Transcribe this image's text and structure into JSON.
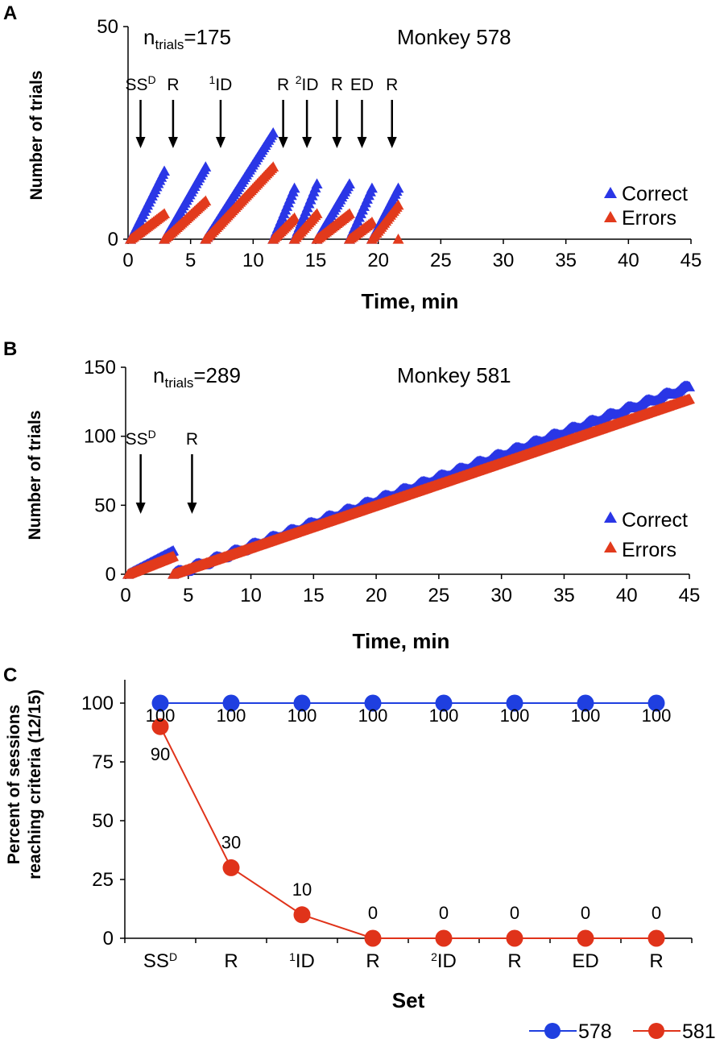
{
  "colors": {
    "correct": "#2a36e6",
    "errors": "#e23a1c",
    "s578": "#1f3fe0",
    "s581": "#e0331a"
  },
  "chart_data": [
    {
      "panel": "A",
      "type": "scatter",
      "title": "Monkey 578",
      "annotation": {
        "base": "n",
        "sub": "trials",
        "rest": "=175"
      },
      "xlabel": "Time, min",
      "ylabel": "Number of trials",
      "xlim": [
        0,
        45
      ],
      "ylim": [
        0,
        50
      ],
      "xticks": [
        "0",
        "5",
        "10",
        "15",
        "20",
        "25",
        "30",
        "35",
        "40",
        "45"
      ],
      "yticks": [
        "0",
        "50"
      ],
      "legend": [
        "Correct",
        "Errors"
      ],
      "legend_position": "right",
      "events": [
        {
          "t": 1.0,
          "label": "SS",
          "sup": "D"
        },
        {
          "t": 3.6,
          "label": "R"
        },
        {
          "t": 7.4,
          "pre": "1",
          "label": "ID"
        },
        {
          "t": 12.4,
          "label": "R"
        },
        {
          "t": 14.3,
          "pre": "2",
          "label": "ID"
        },
        {
          "t": 16.7,
          "label": "R"
        },
        {
          "t": 18.7,
          "label": "ED"
        },
        {
          "t": 21.1,
          "label": "R"
        }
      ],
      "segments": [
        {
          "t0": 0.2,
          "t1": 2.9,
          "correct_end": 16,
          "errors_end": 6
        },
        {
          "t0": 2.9,
          "t1": 6.2,
          "correct_end": 17,
          "errors_end": 9
        },
        {
          "t0": 6.2,
          "t1": 11.6,
          "correct_end": 25,
          "errors_end": 17
        },
        {
          "t0": 11.6,
          "t1": 13.3,
          "correct_end": 12,
          "errors_end": 5
        },
        {
          "t0": 13.3,
          "t1": 15.1,
          "correct_end": 13,
          "errors_end": 6
        },
        {
          "t0": 15.1,
          "t1": 17.7,
          "correct_end": 13,
          "errors_end": 6
        },
        {
          "t0": 17.7,
          "t1": 19.5,
          "correct_end": 12,
          "errors_end": 4
        },
        {
          "t0": 19.5,
          "t1": 21.6,
          "correct_end": 12,
          "errors_end": 8
        }
      ],
      "extra_errors": [
        {
          "t": 21.6,
          "v": 0
        }
      ]
    },
    {
      "panel": "B",
      "type": "scatter",
      "title": "Monkey 581",
      "annotation": {
        "base": "n",
        "sub": "trials",
        "rest": "=289"
      },
      "xlabel": "Time, min",
      "ylabel": "Number of trials",
      "xlim": [
        0,
        45
      ],
      "ylim": [
        0,
        150
      ],
      "xticks": [
        "0",
        "5",
        "10",
        "15",
        "20",
        "25",
        "30",
        "35",
        "40",
        "45"
      ],
      "yticks": [
        "0",
        "50",
        "100",
        "150"
      ],
      "legend": [
        "Correct",
        "Errors"
      ],
      "legend_position": "right",
      "events": [
        {
          "t": 1.2,
          "label": "SS",
          "sup": "D"
        },
        {
          "t": 5.3,
          "label": "R"
        }
      ],
      "segments": [
        {
          "t0": 0.2,
          "t1": 3.8,
          "correct_end": 17,
          "errors_end": 13
        },
        {
          "t0": 3.8,
          "t1": 45.0,
          "correct_end": 136,
          "errors_end": 127
        }
      ]
    },
    {
      "panel": "C",
      "type": "line",
      "xlabel": "Set",
      "ylabel_lines": [
        "Percent of sessions",
        "reaching criteria (12/15)"
      ],
      "ylim": [
        0,
        100
      ],
      "yticks": [
        "0",
        "25",
        "50",
        "75",
        "100"
      ],
      "categories": [
        {
          "label": "SS",
          "sup": "D"
        },
        {
          "label": "R"
        },
        {
          "pre": "1",
          "label": "ID"
        },
        {
          "label": "R"
        },
        {
          "pre": "2",
          "label": "ID"
        },
        {
          "label": "R"
        },
        {
          "label": "ED"
        },
        {
          "label": "R"
        }
      ],
      "series": [
        {
          "name": "578",
          "values": [
            100,
            100,
            100,
            100,
            100,
            100,
            100,
            100
          ]
        },
        {
          "name": "581",
          "values": [
            90,
            30,
            10,
            0,
            0,
            0,
            0,
            0
          ]
        }
      ],
      "value_labels_578": [
        "100",
        "100",
        "100",
        "100",
        "100",
        "100",
        "100",
        "100"
      ],
      "value_labels_581": [
        "90",
        "30",
        "10",
        "0",
        "0",
        "0",
        "0",
        "0"
      ],
      "legend_position": "bottom-right"
    }
  ]
}
